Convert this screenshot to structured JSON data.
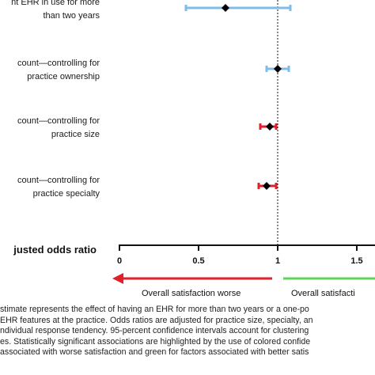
{
  "chart_data": {
    "type": "forest",
    "rows": [
      {
        "label_lines": [
          "nt EHR in use for more",
          "than two years"
        ],
        "estimate": 0.67,
        "ci": [
          0.42,
          1.08
        ],
        "color": "#7fbde6"
      },
      {
        "label_lines": [
          "count—controlling for",
          "practice ownership"
        ],
        "estimate": 1.0,
        "ci": [
          0.93,
          1.07
        ],
        "color": "#7fbde6"
      },
      {
        "label_lines": [
          "count—controlling for",
          "practice size"
        ],
        "estimate": 0.95,
        "ci": [
          0.89,
          0.99
        ],
        "color": "#e0202a"
      },
      {
        "label_lines": [
          "count—controlling for",
          "practice specialty"
        ],
        "estimate": 0.93,
        "ci": [
          0.88,
          0.99
        ],
        "color": "#e0202a"
      }
    ],
    "xlabel": "justed odds ratio",
    "xticks": [
      0,
      0.5,
      1,
      1.5
    ],
    "xtick_labels": [
      "0",
      "0.5",
      "1",
      "1.5"
    ],
    "xlim": [
      0,
      1.5
    ],
    "reference_line": 1,
    "direction_left": {
      "label": "Overall satisfaction worse",
      "color": "#e0202a"
    },
    "direction_right": {
      "label": "Overall satisfacti",
      "color": "#5fd35a"
    }
  },
  "footnote": [
    "stimate represents the effect of having an EHR for more than two years or a one-po",
    "EHR features at the practice. Odds ratios are adjusted for practice size, specialty, an",
    "ndividual response tendency. 95-percent confidence intervals account for clustering",
    "es. Statistically significant associations are highlighted by the use of colored confide",
    "associated with worse satisfaction and green for factors associated with better satis"
  ]
}
